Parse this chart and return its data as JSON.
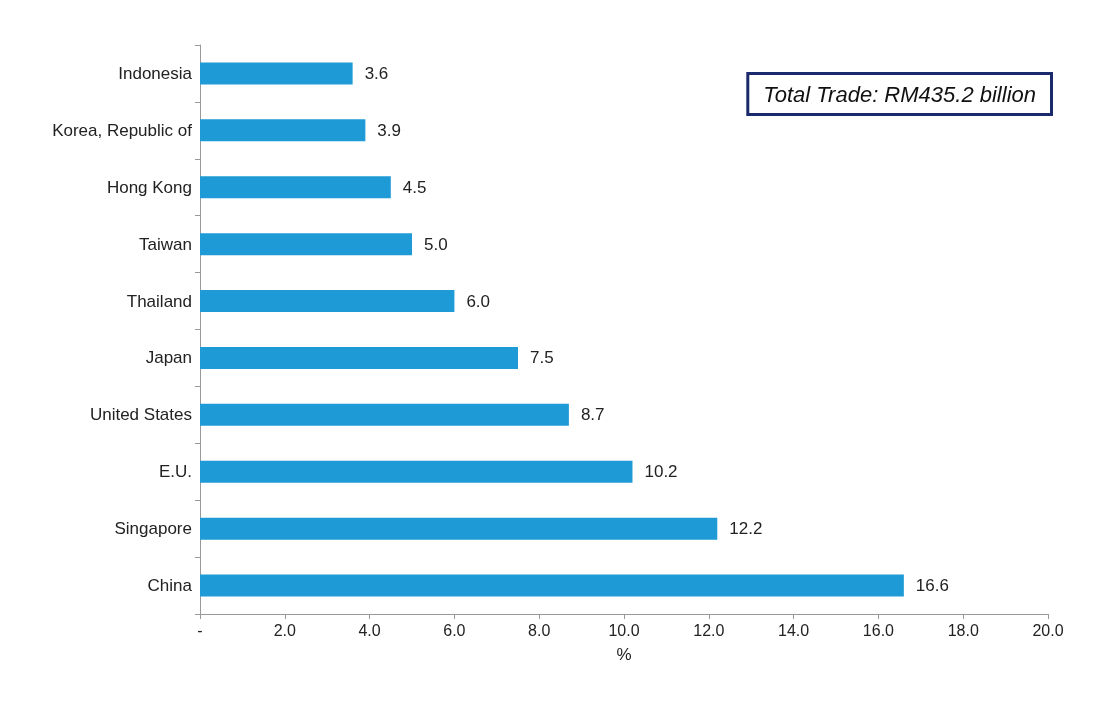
{
  "chart_data": {
    "type": "bar",
    "orientation": "horizontal",
    "categories": [
      "Indonesia",
      "Korea, Republic of",
      "Hong Kong",
      "Taiwan",
      "Thailand",
      "Japan",
      "United States",
      "E.U.",
      "Singapore",
      "China"
    ],
    "values": [
      3.6,
      3.9,
      4.5,
      5.0,
      6.0,
      7.5,
      8.7,
      10.2,
      12.2,
      16.6
    ],
    "value_labels": [
      "3.6",
      "3.9",
      "4.5",
      "5.0",
      "6.0",
      "7.5",
      "8.7",
      "10.2",
      "12.2",
      "16.6"
    ],
    "color": "#1e9ad6",
    "xlabel": "%",
    "xlim": [
      0,
      20
    ],
    "xticks": [
      {
        "value": 0,
        "label": "-"
      },
      {
        "value": 2,
        "label": "2.0"
      },
      {
        "value": 4,
        "label": "4.0"
      },
      {
        "value": 6,
        "label": "6.0"
      },
      {
        "value": 8,
        "label": "8.0"
      },
      {
        "value": 10,
        "label": "10.0"
      },
      {
        "value": 12,
        "label": "12.0"
      },
      {
        "value": 14,
        "label": "14.0"
      },
      {
        "value": 16,
        "label": "16.0"
      },
      {
        "value": 18,
        "label": "18.0"
      },
      {
        "value": 20,
        "label": "20.0"
      }
    ],
    "annotations": [
      "Total Trade: RM435.2 billion"
    ],
    "grid": false
  }
}
